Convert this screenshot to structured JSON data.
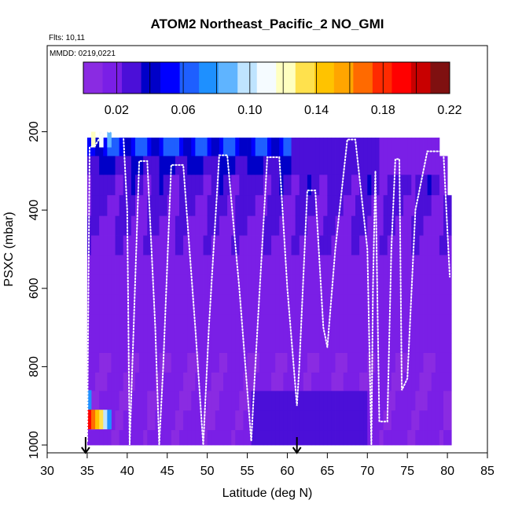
{
  "chart_data": {
    "type": "heatmap",
    "title": "ATOM2 Northeast_Pacific_2 NO_GMI",
    "flights_label": "Flts: 10,11",
    "dates_label": "MMDD: 0219,0221",
    "xlabel": "Latitude (deg N)",
    "ylabel": "PSXC (mbar)",
    "xlim": [
      30,
      85
    ],
    "ylim": [
      1020,
      -20
    ],
    "x_ticks": [
      30,
      35,
      40,
      45,
      50,
      55,
      60,
      65,
      70,
      75,
      80,
      85
    ],
    "y_ticks": [
      200,
      400,
      600,
      800,
      1000
    ],
    "colorbar": {
      "range": [
        0,
        0.22
      ],
      "ticks": [
        0.02,
        0.06,
        0.1,
        0.14,
        0.18,
        0.22
      ],
      "tick_labels": [
        "0.02",
        "0.06",
        "0.10",
        "0.14",
        "0.18",
        "0.22"
      ],
      "colors": [
        "#8a2be2",
        "#7a1fe6",
        "#4b0fd8",
        "#0000c8",
        "#0000ff",
        "#1e5fff",
        "#1e90ff",
        "#5fb4ff",
        "#bfe4ff",
        "#f5fbff",
        "#ffffc0",
        "#ffe14d",
        "#ffc300",
        "#ffa500",
        "#ff6a00",
        "#ff2a00",
        "#ff0000",
        "#c80000",
        "#7f1010"
      ]
    },
    "grid_lat_start": 35,
    "grid_lat_end": 80.5,
    "grid_lat_step": 0.5,
    "pressure_levels": [
      215,
      262,
      310,
      362,
      415,
      465,
      515,
      565,
      615,
      665,
      715,
      765,
      815,
      862,
      912,
      962,
      1000
    ],
    "profile_concentration_by_level": [
      0.055,
      0.035,
      0.028,
      0.025,
      0.022,
      0.02,
      0.018,
      0.017,
      0.016,
      0.016,
      0.016,
      0.015,
      0.015,
      0.015,
      0.016,
      0.017
    ],
    "strong_cells": [
      {
        "lat": 35.5,
        "p_top": 200,
        "p_bot": 240,
        "value": 0.12
      },
      {
        "lat": 36.5,
        "p_top": 200,
        "p_bot": 240,
        "value": 0.11
      },
      {
        "lat": 37.5,
        "p_top": 200,
        "p_bot": 240,
        "value": 0.09
      },
      {
        "lat": 35.0,
        "p_top": 860,
        "p_bot": 910,
        "value": 0.07
      },
      {
        "lat": 35.0,
        "p_top": 910,
        "p_bot": 960,
        "value": 0.19
      },
      {
        "lat": 35.5,
        "p_top": 910,
        "p_bot": 960,
        "value": 0.17
      },
      {
        "lat": 36.0,
        "p_top": 910,
        "p_bot": 960,
        "value": 0.15
      },
      {
        "lat": 36.5,
        "p_top": 910,
        "p_bot": 960,
        "value": 0.13
      },
      {
        "lat": 37.0,
        "p_top": 910,
        "p_bot": 960,
        "value": 0.1
      },
      {
        "lat": 37.5,
        "p_top": 910,
        "p_bot": 960,
        "value": 0.08
      }
    ],
    "flight_track": [
      [
        35.0,
        990
      ],
      [
        35.3,
        240
      ],
      [
        36.0,
        235
      ],
      [
        37.0,
        200
      ],
      [
        39.5,
        200
      ],
      [
        40.0,
        400
      ],
      [
        40.3,
        1000
      ],
      [
        40.8,
        700
      ],
      [
        41.5,
        275
      ],
      [
        42.5,
        275
      ],
      [
        43.5,
        700
      ],
      [
        44.0,
        1000
      ],
      [
        44.5,
        800
      ],
      [
        45.5,
        285
      ],
      [
        47.0,
        285
      ],
      [
        48.5,
        700
      ],
      [
        49.5,
        1000
      ],
      [
        50.2,
        700
      ],
      [
        51.5,
        260
      ],
      [
        52.5,
        260
      ],
      [
        54.0,
        600
      ],
      [
        55.5,
        990
      ],
      [
        56.0,
        800
      ],
      [
        57.5,
        265
      ],
      [
        59.0,
        265
      ],
      [
        60.0,
        600
      ],
      [
        61.2,
        900
      ],
      [
        61.5,
        800
      ],
      [
        62.5,
        350
      ],
      [
        63.5,
        350
      ],
      [
        64.5,
        700
      ],
      [
        65.0,
        750
      ],
      [
        66.0,
        500
      ],
      [
        67.5,
        220
      ],
      [
        68.5,
        220
      ],
      [
        70.0,
        500
      ],
      [
        70.5,
        1000
      ],
      [
        70.7,
        600
      ],
      [
        71.0,
        300
      ],
      [
        71.5,
        940
      ],
      [
        72.5,
        940
      ],
      [
        73.0,
        500
      ],
      [
        73.5,
        270
      ],
      [
        74.0,
        270
      ],
      [
        74.3,
        860
      ],
      [
        75.0,
        830
      ],
      [
        76.0,
        400
      ],
      [
        77.5,
        250
      ],
      [
        79.5,
        250
      ],
      [
        80.3,
        570
      ]
    ],
    "arrows": [
      {
        "lat": 34.8,
        "label": ""
      },
      {
        "lat": 61.2,
        "label": ""
      }
    ]
  }
}
